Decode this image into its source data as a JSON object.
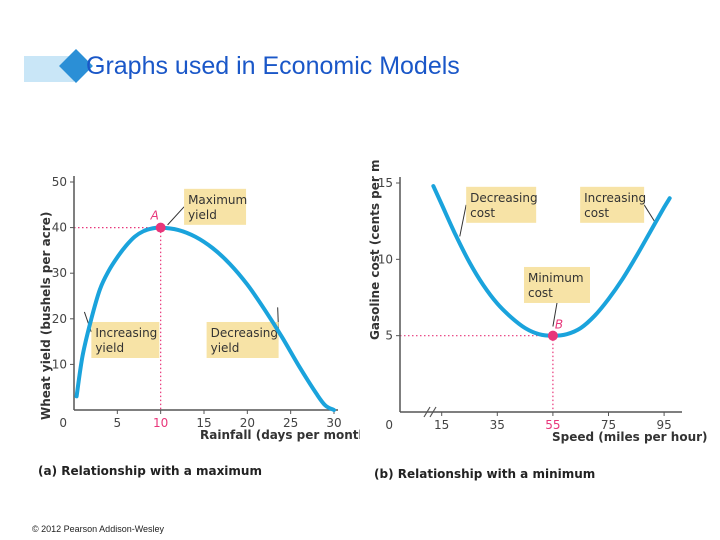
{
  "header": {
    "title": "Graphs used in Economic Models",
    "accent": "#1a57c8"
  },
  "footer": {
    "copyright": "© 2012 Pearson Addison-Wesley"
  },
  "colors": {
    "curve": "#1aa3dc",
    "point": "#e8367a",
    "callout": "#f7e3a6",
    "axis": "#555555"
  },
  "chart_data": [
    {
      "type": "line",
      "caption": "(a) Relationship with a maximum",
      "xlabel": "Rainfall (days per month)",
      "ylabel": "Wheat yield (bushels per acre)",
      "xlim": [
        0,
        30
      ],
      "ylim": [
        0,
        50
      ],
      "xticks": [
        "0",
        "5",
        "10",
        "15",
        "20",
        "25",
        "30"
      ],
      "xtick_values": [
        0,
        5,
        10,
        15,
        20,
        25,
        30
      ],
      "yticks": [
        "10",
        "20",
        "30",
        "40",
        "50"
      ],
      "ytick_values": [
        10,
        20,
        30,
        40,
        50
      ],
      "x": [
        0.3,
        1,
        2,
        3,
        4,
        5,
        6,
        7,
        8,
        9,
        10,
        12,
        14,
        16,
        18,
        20,
        22,
        24,
        26,
        28,
        29,
        30
      ],
      "y": [
        3,
        12,
        20,
        26.5,
        30.5,
        33.5,
        36,
        38,
        39.2,
        39.8,
        40,
        39.5,
        38,
        35.5,
        32,
        27.5,
        22,
        16,
        9.5,
        3.5,
        1,
        0
      ],
      "highlight": {
        "label": "A",
        "x": 10,
        "y": 40
      },
      "annotations": [
        {
          "label": [
            "Maximum",
            "yield"
          ]
        },
        {
          "label": [
            "Increasing",
            "yield"
          ]
        },
        {
          "label": [
            "Decreasing",
            "yield"
          ]
        }
      ]
    },
    {
      "type": "line",
      "caption": "(b) Relationship with a minimum",
      "xlabel": "Speed (miles per hour)",
      "ylabel": "Gasoline cost (cents per mile)",
      "xlim": [
        0,
        100
      ],
      "ylim": [
        0,
        15
      ],
      "axis_break": true,
      "xticks": [
        "0",
        "15",
        "35",
        "55",
        "75",
        "95"
      ],
      "xtick_values": [
        0,
        15,
        35,
        55,
        75,
        95
      ],
      "yticks": [
        "5",
        "10",
        "15"
      ],
      "ytick_values": [
        5,
        10,
        15
      ],
      "x": [
        12,
        15,
        20,
        25,
        30,
        35,
        40,
        45,
        50,
        55,
        60,
        65,
        70,
        75,
        80,
        85,
        90,
        95,
        97
      ],
      "y": [
        14.8,
        13.6,
        11.6,
        9.8,
        8.3,
        7.1,
        6.2,
        5.5,
        5.1,
        5,
        5.1,
        5.5,
        6.3,
        7.4,
        8.7,
        10.2,
        11.8,
        13.4,
        14
      ],
      "highlight": {
        "label": "B",
        "x": 55,
        "y": 5
      },
      "annotations": [
        {
          "label": [
            "Decreasing",
            "cost"
          ]
        },
        {
          "label": [
            "Increasing",
            "cost"
          ]
        },
        {
          "label": [
            "Minimum",
            "cost"
          ]
        }
      ]
    }
  ]
}
